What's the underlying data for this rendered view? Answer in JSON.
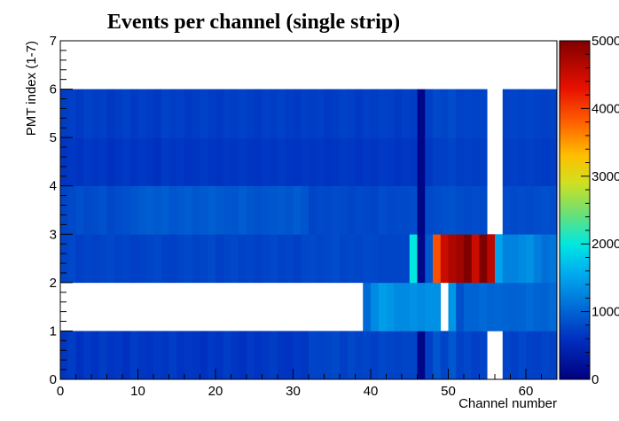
{
  "chart_data": {
    "type": "heatmap",
    "title": "Events per channel (single strip)",
    "xlabel": "Channel number",
    "ylabel": "PMT index (1-7)",
    "xlim": [
      0,
      64
    ],
    "ylim": [
      0,
      7
    ],
    "zlim": [
      0,
      5000
    ],
    "x_ticks": [
      0,
      10,
      20,
      30,
      40,
      50,
      60
    ],
    "y_ticks": [
      0,
      1,
      2,
      3,
      4,
      5,
      6,
      7
    ],
    "z_ticks": [
      0,
      1000,
      2000,
      3000,
      4000,
      5000
    ],
    "colormap": "rainbow (blue-cyan-green-yellow-red)",
    "grid": false,
    "rows": [
      {
        "row_index": 0,
        "y_range": [
          0,
          1
        ],
        "values": [
          650,
          700,
          600,
          680,
          620,
          700,
          640,
          660,
          600,
          700,
          650,
          620,
          680,
          640,
          700,
          620,
          660,
          640,
          600,
          680,
          620,
          700,
          650,
          600,
          680,
          620,
          660,
          700,
          640,
          620,
          680,
          650,
          760,
          740,
          760,
          800,
          720,
          780,
          740,
          760,
          720,
          780,
          760,
          740,
          760,
          760,
          80,
          720,
          880,
          760,
          900,
          740,
          780,
          720,
          760,
          null,
          null,
          760,
          720,
          780,
          740,
          720,
          760,
          740
        ]
      },
      {
        "row_index": 1,
        "y_range": [
          1,
          2
        ],
        "values": [
          null,
          null,
          null,
          null,
          null,
          null,
          null,
          null,
          null,
          null,
          null,
          null,
          null,
          null,
          null,
          null,
          null,
          null,
          null,
          null,
          null,
          null,
          null,
          null,
          null,
          null,
          null,
          null,
          null,
          null,
          null,
          null,
          null,
          null,
          null,
          null,
          null,
          null,
          null,
          1050,
          1300,
          1450,
          1400,
          1300,
          1300,
          1350,
          1300,
          1350,
          1350,
          null,
          1400,
          850,
          1000,
          1000,
          1050,
          1000,
          1020,
          1000,
          980,
          1000,
          1050,
          1000,
          980,
          1050
        ]
      },
      {
        "row_index": 2,
        "y_range": [
          2,
          3
        ],
        "values": [
          760,
          780,
          720,
          760,
          740,
          760,
          780,
          740,
          760,
          720,
          740,
          760,
          780,
          740,
          720,
          760,
          780,
          740,
          760,
          800,
          720,
          760,
          780,
          740,
          760,
          720,
          760,
          780,
          740,
          760,
          720,
          780,
          800,
          760,
          780,
          820,
          760,
          780,
          760,
          800,
          780,
          760,
          760,
          760,
          760,
          2000,
          100,
          900,
          3900,
          4500,
          4700,
          4800,
          5000,
          4500,
          5000,
          4600,
          1500,
          1250,
          1250,
          1300,
          1350,
          1200,
          1100,
          1150
        ]
      },
      {
        "row_index": 3,
        "y_range": [
          3,
          4
        ],
        "values": [
          760,
          800,
          840,
          800,
          820,
          860,
          780,
          820,
          840,
          880,
          920,
          960,
          920,
          960,
          880,
          920,
          940,
          900,
          920,
          960,
          920,
          900,
          880,
          940,
          900,
          860,
          880,
          900,
          920,
          880,
          940,
          880,
          760,
          800,
          780,
          820,
          800,
          760,
          800,
          780,
          760,
          820,
          780,
          800,
          800,
          820,
          80,
          800,
          820,
          840,
          860,
          820,
          800,
          820,
          800,
          null,
          null,
          820,
          800,
          820,
          800,
          820,
          840,
          820
        ]
      },
      {
        "row_index": 4,
        "y_range": [
          4,
          5
        ],
        "values": [
          640,
          660,
          620,
          680,
          640,
          660,
          600,
          640,
          680,
          620,
          660,
          640,
          600,
          680,
          640,
          660,
          620,
          640,
          680,
          640,
          620,
          660,
          640,
          680,
          640,
          620,
          660,
          640,
          680,
          640,
          620,
          660,
          640,
          660,
          620,
          640,
          680,
          660,
          620,
          660,
          640,
          680,
          660,
          620,
          660,
          640,
          80,
          660,
          720,
          720,
          760,
          700,
          720,
          700,
          720,
          null,
          null,
          700,
          720,
          700,
          720,
          700,
          680,
          700
        ]
      },
      {
        "row_index": 5,
        "y_range": [
          5,
          6
        ],
        "values": [
          700,
          720,
          680,
          740,
          700,
          720,
          660,
          700,
          740,
          680,
          720,
          700,
          660,
          740,
          700,
          720,
          680,
          700,
          740,
          700,
          680,
          720,
          700,
          740,
          700,
          680,
          720,
          700,
          740,
          700,
          680,
          720,
          700,
          720,
          680,
          700,
          740,
          720,
          680,
          720,
          700,
          740,
          720,
          680,
          720,
          700,
          80,
          720,
          800,
          760,
          820,
          740,
          760,
          740,
          760,
          null,
          null,
          740,
          760,
          740,
          760,
          740,
          720,
          740
        ]
      },
      {
        "row_index": 6,
        "y_range": [
          6,
          7
        ],
        "values": []
      }
    ]
  }
}
